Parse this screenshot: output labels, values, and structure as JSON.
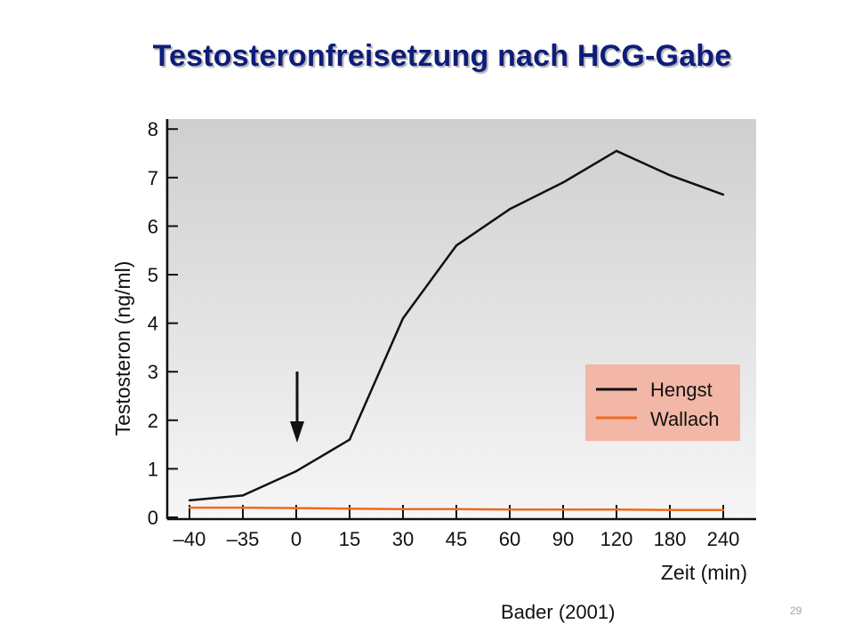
{
  "slide": {
    "title": "Testosteronfreisetzung nach HCG-Gabe",
    "source": "Bader (2001)",
    "page_number": "29"
  },
  "chart_data": {
    "type": "line",
    "categories": [
      "–40",
      "–35",
      "0",
      "15",
      "30",
      "45",
      "60",
      "90",
      "120",
      "180",
      "240"
    ],
    "series": [
      {
        "name": "Hengst",
        "color": "#111111",
        "values": [
          0.35,
          0.45,
          0.95,
          1.6,
          4.1,
          5.6,
          6.35,
          6.9,
          7.55,
          7.05,
          6.65
        ]
      },
      {
        "name": "Wallach",
        "color": "#f06a1e",
        "values": [
          0.2,
          0.2,
          0.19,
          0.18,
          0.17,
          0.17,
          0.16,
          0.16,
          0.16,
          0.15,
          0.15
        ]
      }
    ],
    "xlabel": "Zeit (min)",
    "ylabel": "Testosteron (ng/ml)",
    "ylim": [
      0,
      8
    ],
    "yticks": [
      "0",
      "1",
      "2",
      "3",
      "4",
      "5",
      "6",
      "7",
      "8"
    ],
    "legend_position": "lower-right",
    "legend_background": "#f2b7a6",
    "annotation": "arrow marking HCG administration at time 0"
  }
}
